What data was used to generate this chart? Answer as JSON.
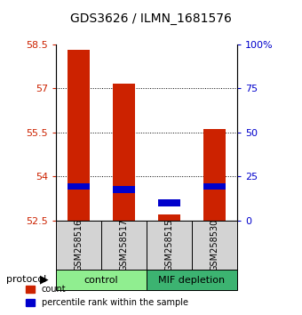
{
  "title": "GDS3626 / ILMN_1681576",
  "samples": [
    "GSM258516",
    "GSM258517",
    "GSM258515",
    "GSM258530"
  ],
  "group_colors": [
    "#90EE90",
    "#90EE90",
    "#3CB371",
    "#3CB371"
  ],
  "bar_color": "#CC2200",
  "pct_color": "#0000CC",
  "ylim": [
    52.5,
    58.5
  ],
  "yticks_left": [
    52.5,
    54,
    55.5,
    57,
    58.5
  ],
  "yticks_right_vals": [
    0,
    25,
    50,
    75,
    100
  ],
  "yticks_right_labels": [
    "0",
    "25",
    "50",
    "75",
    "100%"
  ],
  "count_values": [
    58.3,
    57.15,
    52.72,
    55.6
  ],
  "pct_values": [
    53.65,
    53.55,
    53.1,
    53.65
  ],
  "bar_bottom": 52.5,
  "bar_width": 0.5,
  "tick_color_left": "#CC2200",
  "tick_color_right": "#0000CC"
}
